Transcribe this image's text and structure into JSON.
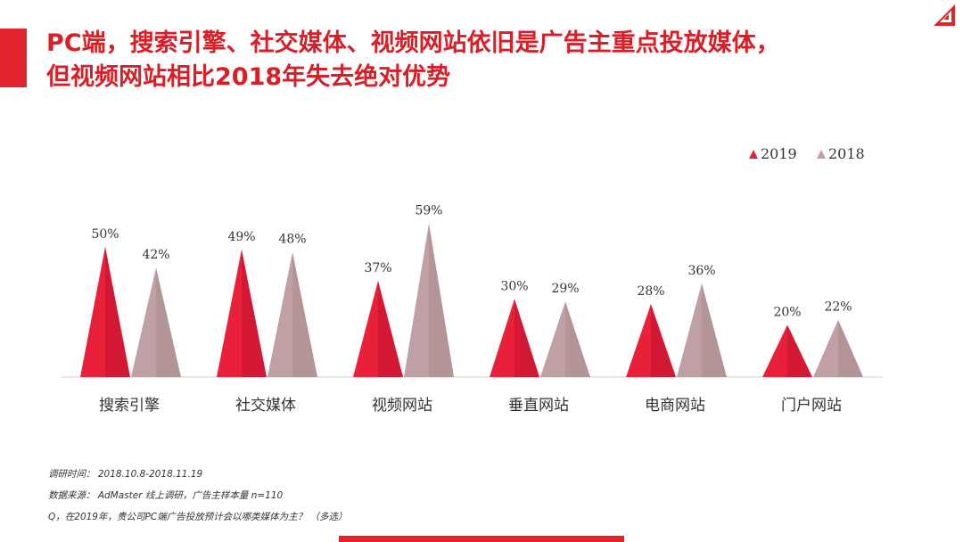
{
  "title": {
    "line1": "PC端，搜索引擎、社交媒体、视频网站依旧是广告主重点投放媒体，",
    "line2": "但视频网站相比2018年失去绝对优势"
  },
  "colors": {
    "accent": "#e2232b",
    "title": "#d81e27",
    "series_2019": "#e8203a",
    "series_2018": "#bfa0a4"
  },
  "chart_data": {
    "type": "bar",
    "categories": [
      "搜索引擎",
      "社交媒体",
      "视频网站",
      "垂直网站",
      "电商网站",
      "门户网站"
    ],
    "series": [
      {
        "name": "2019",
        "values": [
          50,
          49,
          37,
          30,
          28,
          20
        ],
        "labels": [
          "50%",
          "49%",
          "37%",
          "30%",
          "28%",
          "20%"
        ]
      },
      {
        "name": "2018",
        "values": [
          42,
          48,
          59,
          29,
          36,
          22
        ],
        "labels": [
          "42%",
          "48%",
          "59%",
          "29%",
          "36%",
          "22%"
        ]
      }
    ],
    "ylim": [
      0,
      65
    ],
    "grid": false,
    "legend_position": "top-right"
  },
  "notes": {
    "period": "调研时间：  2018.10.8-2018.11.19",
    "source": "数据来源：  AdMaster  线上调研，广告主样本量  n=110",
    "question": "Q，在2019年，贵公司PC端广告投放预计会以哪类媒体为主？  （多选）"
  }
}
